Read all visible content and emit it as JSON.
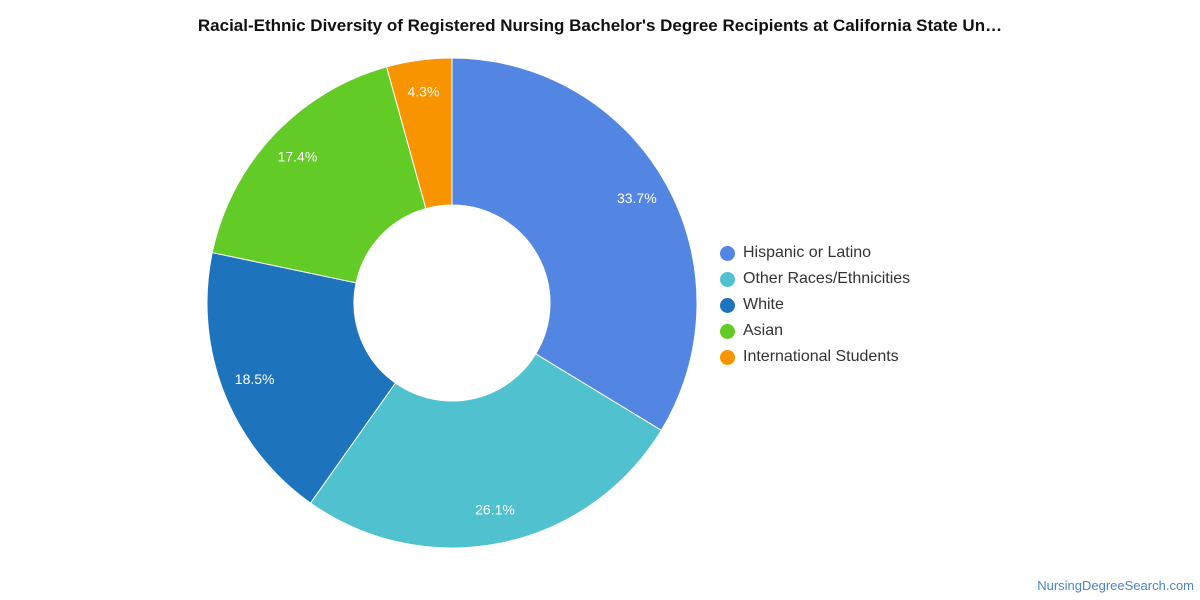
{
  "chart_data": {
    "type": "pie",
    "donut": true,
    "title": "Racial-Ethnic Diversity of Registered Nursing Bachelor's Degree Recipients at California State Un…",
    "legend_position": "right",
    "series": [
      {
        "name": "Hispanic or Latino",
        "value": 33.7,
        "label": "33.7%",
        "color": "#5385e2"
      },
      {
        "name": "Other Races/Ethnicities",
        "value": 26.1,
        "label": "26.1%",
        "color": "#50c1cf"
      },
      {
        "name": "White",
        "value": 18.5,
        "label": "18.5%",
        "color": "#1e73bd"
      },
      {
        "name": "Asian",
        "value": 17.4,
        "label": "17.4%",
        "color": "#62cb26"
      },
      {
        "name": "International Students",
        "value": 4.3,
        "label": "4.3%",
        "color": "#f79400"
      }
    ]
  },
  "footer": {
    "credit": "NursingDegreeSearch.com"
  }
}
